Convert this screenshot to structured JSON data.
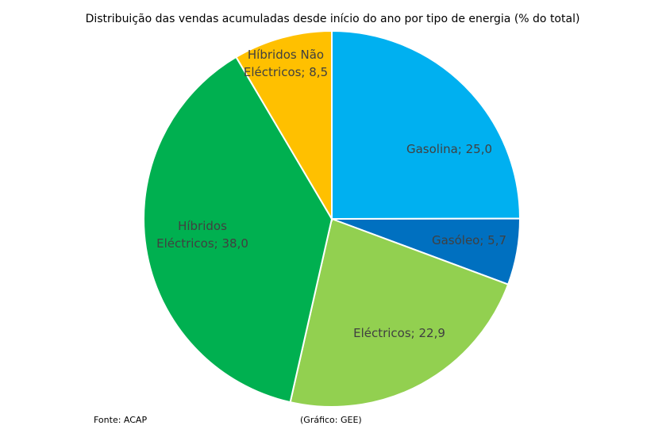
{
  "chart_data": {
    "type": "pie",
    "title": "Distribuição das vendas acumuladas desde início do ano por tipo de energia (% do total)",
    "slices": [
      {
        "name": "Gasolina",
        "value": 25.0,
        "color": "#00B0F0",
        "label_lines": [
          "Gasolina; 25,0"
        ]
      },
      {
        "name": "Gasóleo",
        "value": 5.7,
        "color": "#0070C0",
        "label_lines": [
          "Gasóleo; 5,7"
        ]
      },
      {
        "name": "Eléctricos",
        "value": 22.9,
        "color": "#92D050",
        "label_lines": [
          "Eléctricos; 22,9"
        ]
      },
      {
        "name": "Híbridos Eléctricos",
        "value": 38.0,
        "color": "#00B050",
        "label_lines": [
          "Híbridos",
          "Eléctricos; 38,0"
        ]
      },
      {
        "name": "Híbridos Não Eléctricos",
        "value": 8.5,
        "color": "#FFC000",
        "label_lines": [
          "Híbridos Não",
          "Eléctricos; 8,5"
        ]
      }
    ],
    "legend": "none"
  },
  "footer": {
    "source": "Fonte: ACAP",
    "credit": "(Gráfico: GEE)"
  }
}
